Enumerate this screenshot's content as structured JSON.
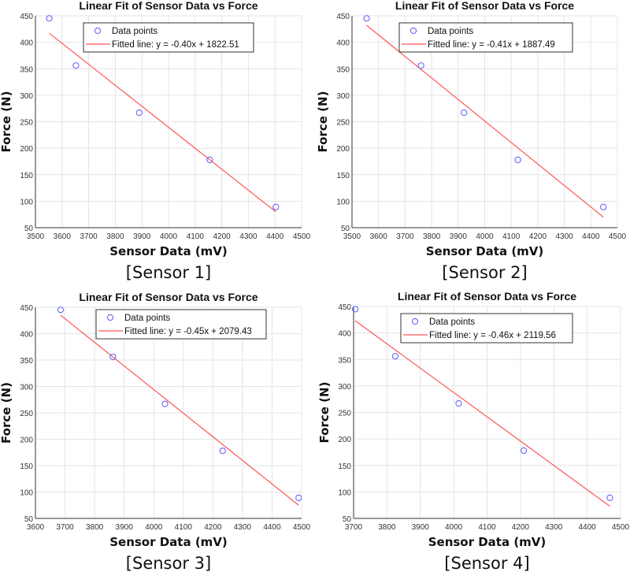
{
  "chart_data": [
    {
      "type": "scatter",
      "title": "Linear Fit of Sensor Data vs Force",
      "caption": "[Sensor 1]",
      "xlabel": "Sensor Data (mV)",
      "ylabel": "Force (N)",
      "xlim": [
        3500,
        4500
      ],
      "ylim": [
        50,
        450
      ],
      "xticks": [
        3500,
        3600,
        3700,
        3800,
        3900,
        4000,
        4100,
        4200,
        4300,
        4400,
        4500
      ],
      "yticks": [
        50,
        100,
        150,
        200,
        250,
        300,
        350,
        400,
        450
      ],
      "grid": true,
      "legend_placement": "top-center",
      "series": [
        {
          "name": "Data points",
          "kind": "markers",
          "color": "#6666ff",
          "x": [
            3552,
            3652,
            3890,
            4155,
            4403
          ],
          "y": [
            445,
            356,
            267,
            178,
            89
          ]
        },
        {
          "name": "Fitted line: y = -0.40x + 1822.51",
          "kind": "line",
          "color": "#ff5555",
          "x": [
            3552,
            4403
          ],
          "y": [
            417,
            80
          ]
        }
      ]
    },
    {
      "type": "scatter",
      "title": "Linear Fit of Sensor Data vs Force",
      "caption": "[Sensor 2]",
      "xlabel": "Sensor Data (mV)",
      "ylabel": "Force (N)",
      "xlim": [
        3500,
        4500
      ],
      "ylim": [
        50,
        450
      ],
      "xticks": [
        3500,
        3600,
        3700,
        3800,
        3900,
        4000,
        4100,
        4200,
        4300,
        4400,
        4500
      ],
      "yticks": [
        50,
        100,
        150,
        200,
        250,
        300,
        350,
        400,
        450
      ],
      "grid": true,
      "legend_placement": "top-center",
      "series": [
        {
          "name": "Data points",
          "kind": "markers",
          "color": "#6666ff",
          "x": [
            3555,
            3760,
            3922,
            4125,
            4447
          ],
          "y": [
            445,
            356,
            267,
            178,
            89
          ]
        },
        {
          "name": "Fitted line: y = -0.41x + 1887.49",
          "kind": "line",
          "color": "#ff5555",
          "x": [
            3555,
            4447
          ],
          "y": [
            432,
            70
          ]
        }
      ]
    },
    {
      "type": "scatter",
      "title": "Linear Fit of Sensor Data vs Force",
      "caption": "[Sensor 3]",
      "xlabel": "Sensor Data (mV)",
      "ylabel": "Force (N)",
      "xlim": [
        3600,
        4500
      ],
      "ylim": [
        50,
        450
      ],
      "xticks": [
        3600,
        3700,
        3800,
        3900,
        4000,
        4100,
        4200,
        4300,
        4400,
        4500
      ],
      "yticks": [
        50,
        100,
        150,
        200,
        250,
        300,
        350,
        400,
        450
      ],
      "grid": true,
      "legend_placement": "top-center",
      "series": [
        {
          "name": "Data points",
          "kind": "markers",
          "color": "#6666ff",
          "x": [
            3685,
            3862,
            4038,
            4233,
            4490
          ],
          "y": [
            445,
            356,
            267,
            178,
            89
          ]
        },
        {
          "name": "Fitted line: y = -0.45x + 2079.43",
          "kind": "line",
          "color": "#ff5555",
          "x": [
            3685,
            4490
          ],
          "y": [
            435,
            75
          ]
        }
      ]
    },
    {
      "type": "scatter",
      "title": "Linear Fit of Sensor Data vs Force",
      "caption": "[Sensor 4]",
      "xlabel": "Sensor Data (mV)",
      "ylabel": "Force (N)",
      "xlim": [
        3700,
        4500
      ],
      "ylim": [
        50,
        450
      ],
      "xticks": [
        3700,
        3800,
        3900,
        4000,
        4100,
        4200,
        4300,
        4400,
        4500
      ],
      "yticks": [
        50,
        100,
        150,
        200,
        250,
        300,
        350,
        400,
        450
      ],
      "grid": true,
      "legend_placement": "top-center",
      "series": [
        {
          "name": "Data points",
          "kind": "markers",
          "color": "#6666ff",
          "x": [
            3705,
            3825,
            4015,
            4210,
            4468
          ],
          "y": [
            445,
            356,
            267,
            178,
            89
          ]
        },
        {
          "name": "Fitted line: y = -0.46x + 2119.56",
          "kind": "line",
          "color": "#ff5555",
          "x": [
            3705,
            4468
          ],
          "y": [
            423,
            73
          ]
        }
      ]
    }
  ]
}
